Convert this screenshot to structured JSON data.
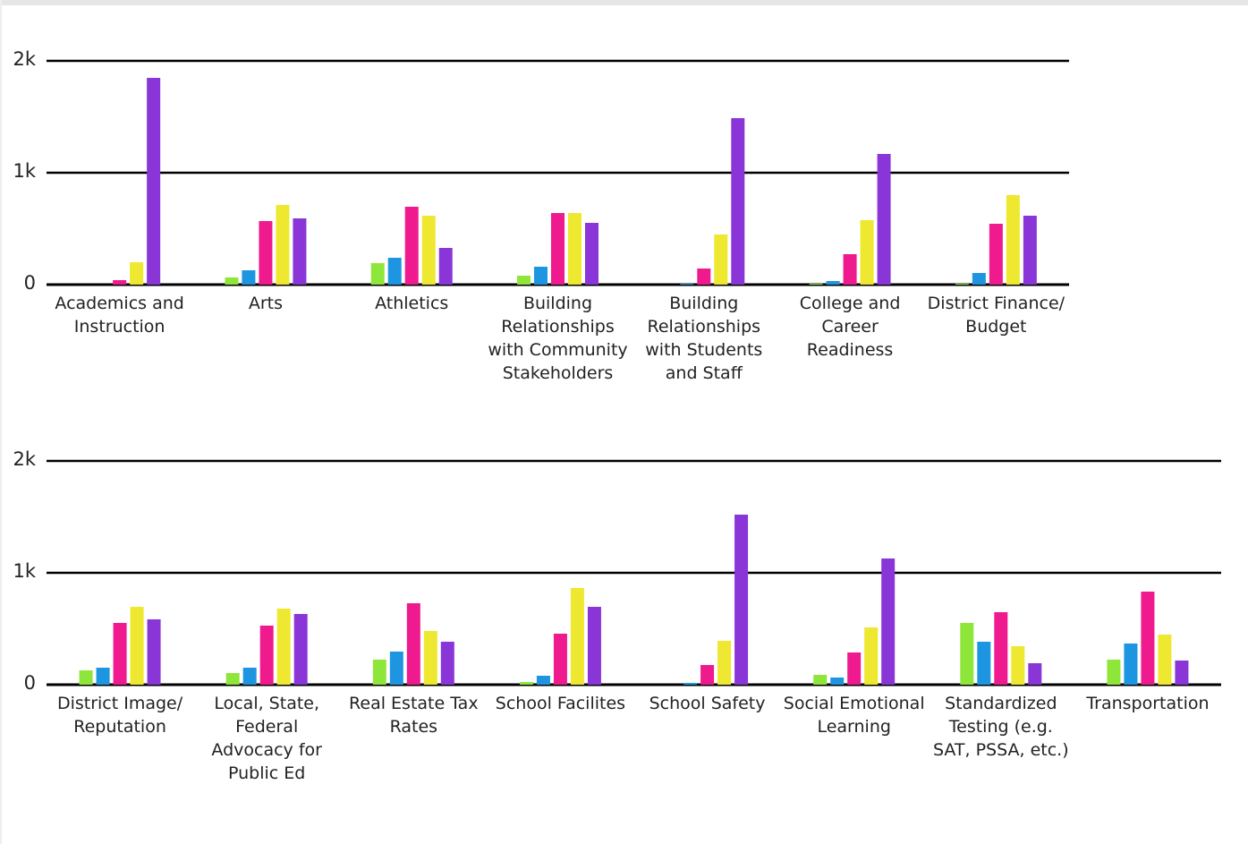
{
  "chart_data": [
    {
      "type": "bar",
      "categories": [
        "Academics and Instruction",
        "Arts",
        "Athletics",
        "Building Relationships with Community Stakeholders",
        "Building Relationships with Students and Staff",
        "College and Career Readiness",
        "District Finance/ Budget"
      ],
      "series": [
        {
          "color": "#8ee63a",
          "values": [
            0,
            64,
            192,
            80,
            0,
            8,
            8
          ]
        },
        {
          "color": "#1e95e0",
          "values": [
            0,
            128,
            240,
            160,
            8,
            32,
            104
          ]
        },
        {
          "color": "#ef1a8e",
          "values": [
            40,
            568,
            696,
            640,
            144,
            272,
            544
          ]
        },
        {
          "color": "#eee830",
          "values": [
            200,
            712,
            616,
            640,
            448,
            576,
            800
          ]
        },
        {
          "color": "#8a35d8",
          "values": [
            1848,
            592,
            328,
            552,
            1488,
            1168,
            616
          ]
        }
      ],
      "ylim": [
        0,
        2000
      ],
      "yticks": [
        0,
        {
          "value": 1000,
          "label": "1k"
        },
        {
          "value": 2000,
          "label": "2k"
        }
      ],
      "grid": true
    },
    {
      "type": "bar",
      "categories": [
        "District Image/ Reputation",
        "Local, State, Federal Advocacy for Public Ed",
        "Real Estate Tax Rates",
        "School Facilites",
        "School Safety",
        "Social Emotional Learning",
        "Standardized Testing (e.g. SAT, PSSA, etc.)",
        "Transportation"
      ],
      "series": [
        {
          "color": "#8ee63a",
          "values": [
            128,
            104,
            224,
            24,
            0,
            88,
            552,
            224
          ]
        },
        {
          "color": "#1e95e0",
          "values": [
            152,
            152,
            296,
            80,
            16,
            64,
            384,
            368
          ]
        },
        {
          "color": "#ef1a8e",
          "values": [
            552,
            528,
            728,
            456,
            176,
            288,
            648,
            832
          ]
        },
        {
          "color": "#eee830",
          "values": [
            696,
            680,
            480,
            864,
            392,
            512,
            344,
            448
          ]
        },
        {
          "color": "#8a35d8",
          "values": [
            584,
            632,
            384,
            696,
            1520,
            1128,
            192,
            216
          ]
        }
      ],
      "ylim": [
        0,
        2000
      ],
      "yticks": [
        0,
        {
          "value": 1000,
          "label": "1k"
        },
        {
          "value": 2000,
          "label": "2k"
        }
      ],
      "grid": true
    }
  ]
}
